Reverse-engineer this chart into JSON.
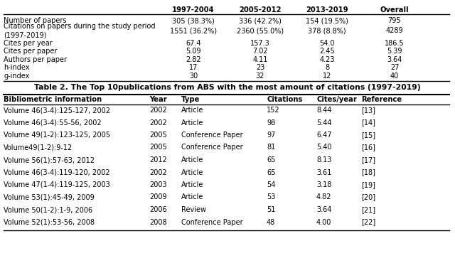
{
  "table1_headers": [
    "",
    "1997-2004",
    "2005-2012",
    "2013-2019",
    "Overall"
  ],
  "table1_rows": [
    [
      "Number of papers",
      "305 (38.3%)",
      "336 (42.2%)",
      "154 (19.5%)",
      "795"
    ],
    [
      "Citations on papers during the study period\n(1997-2019)",
      "1551 (36.2%)",
      "2360 (55.0%)",
      "378 (8.8%)",
      "4289"
    ],
    [
      "Cites per year",
      "67.4",
      "157.3",
      "54.0",
      "186.5"
    ],
    [
      "Cites per paper",
      "5.09",
      "7.02",
      "2.45",
      "5.39"
    ],
    [
      "Authors per paper",
      "2.82",
      "4.11",
      "4.23",
      "3.64"
    ],
    [
      "h-index",
      "17",
      "23",
      "8",
      "27"
    ],
    [
      "g-index",
      "30",
      "32",
      "12",
      "40"
    ]
  ],
  "table2_title": "Table 2. The Top 10publications from ABS with the most amount of citations (1997-2019)",
  "table2_headers": [
    "Bibliometric information",
    "Year",
    "Type",
    "Citations",
    "Cites/year",
    "Reference"
  ],
  "table2_rows": [
    [
      "Volume 46(3-4):125-127, 2002",
      "2002",
      "Article",
      "152",
      "8.44",
      "[13]"
    ],
    [
      "Volume 46(3-4):55-56, 2002",
      "2002",
      "Article",
      "98",
      "5.44",
      "[14]"
    ],
    [
      "Volume 49(1-2):123-125, 2005",
      "2005",
      "Conference Paper",
      "97",
      "6.47",
      "[15]"
    ],
    [
      "Volume49(1-2):9-12",
      "2005",
      "Conference Paper",
      "81",
      "5.40",
      "[16]"
    ],
    [
      "Volume 56(1):57-63, 2012",
      "2012",
      "Article",
      "65",
      "8.13",
      "[17]"
    ],
    [
      "Volume 46(3-4):119-120, 2002",
      "2002",
      "Article",
      "65",
      "3.61",
      "[18]"
    ],
    [
      "Volume 47(1-4):119-125, 2003",
      "2003",
      "Article",
      "54",
      "3.18",
      "[19]"
    ],
    [
      "Volume 53(1):45-49, 2009",
      "2009",
      "Article",
      "53",
      "4.82",
      "[20]"
    ],
    [
      "Volume 50(1-2):1-9, 2006",
      "2006",
      "Review",
      "51",
      "3.64",
      "[21]"
    ],
    [
      "Volume 52(1):53-56, 2008",
      "2008",
      "Conference Paper",
      "48",
      "4.00",
      "[22]"
    ]
  ],
  "bg_color": "#ffffff",
  "font_size": 7.0,
  "header_font_size": 7.2,
  "title_font_size": 7.8
}
